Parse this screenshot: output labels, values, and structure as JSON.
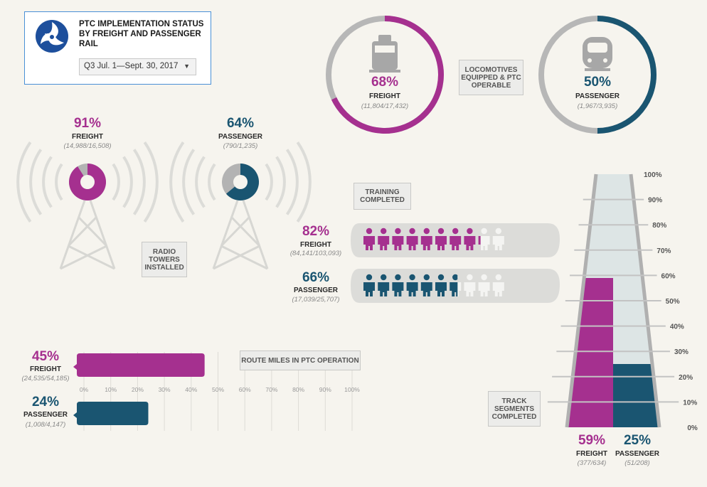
{
  "header": {
    "title": "PTC IMPLEMENTATION STATUS BY FREIGHT AND PASSENGER RAIL",
    "period_selected": "Q3 Jul. 1—Sept. 30, 2017",
    "logo_icon": "dot-logo-icon"
  },
  "colors": {
    "freight": "#a5308f",
    "passenger": "#1a5571",
    "remaining_gray": "#b3b3b3",
    "light": "#dde5e5",
    "header_border": "#4a90d6"
  },
  "locomotives": {
    "label": "LOCOMOTIVES EQUIPPED & PTC OPERABLE",
    "freight": {
      "pct": "68%",
      "label": "FREIGHT",
      "frac": "(11,804/17,432)",
      "icon": "freight-locomotive-icon"
    },
    "passenger": {
      "pct": "50%",
      "label": "PASSENGER",
      "frac": "(1,967/3,935)",
      "icon": "passenger-train-icon"
    }
  },
  "radio": {
    "label": "RADIO TOWERS INSTALLED",
    "freight": {
      "pct": "91%",
      "label": "FREIGHT",
      "frac": "(14,988/16,508)",
      "icon": "radio-tower-icon"
    },
    "passenger": {
      "pct": "64%",
      "label": "PASSENGER",
      "frac": "(790/1,235)",
      "icon": "radio-tower-icon"
    }
  },
  "training": {
    "label": "TRAINING COMPLETED",
    "freight": {
      "pct": "82%",
      "label": "FREIGHT",
      "frac": "(84,141/103,093)",
      "icon": "person-icon"
    },
    "passenger": {
      "pct": "66%",
      "label": "PASSENGER",
      "frac": "(17,039/25,707)",
      "icon": "person-icon"
    }
  },
  "route": {
    "label": "ROUTE MILES IN PTC OPERATION",
    "freight": {
      "pct": "45%",
      "label": "FREIGHT",
      "frac": "(24,535/54,185)"
    },
    "passenger": {
      "pct": "24%",
      "label": "PASSENGER",
      "frac": "(1,008/4,147)"
    }
  },
  "track": {
    "label": "TRACK SEGMENTS COMPLETED",
    "freight": {
      "pct": "59%",
      "label": "FREIGHT",
      "frac": "(377/634)"
    },
    "passenger": {
      "pct": "25%",
      "label": "PASSENGER",
      "frac": "(51/208)"
    }
  },
  "chart_data": [
    {
      "type": "pie",
      "title": "LOCOMOTIVES EQUIPPED & PTC OPERABLE",
      "series": [
        {
          "name": "FREIGHT",
          "value": 68,
          "completed": 11804,
          "total": 17432
        },
        {
          "name": "PASSENGER",
          "value": 50,
          "completed": 1967,
          "total": 3935
        }
      ]
    },
    {
      "type": "pie",
      "title": "RADIO TOWERS INSTALLED",
      "series": [
        {
          "name": "FREIGHT",
          "value": 91,
          "completed": 14988,
          "total": 16508
        },
        {
          "name": "PASSENGER",
          "value": 64,
          "completed": 790,
          "total": 1235
        }
      ]
    },
    {
      "type": "bar",
      "title": "TRAINING COMPLETED",
      "series": [
        {
          "name": "FREIGHT",
          "value": 82,
          "completed": 84141,
          "total": 103093
        },
        {
          "name": "PASSENGER",
          "value": 66,
          "completed": 17039,
          "total": 25707
        }
      ],
      "ylim": [
        0,
        100
      ]
    },
    {
      "type": "bar",
      "title": "ROUTE MILES IN PTC OPERATION",
      "orientation": "horizontal",
      "categories": [
        "FREIGHT",
        "PASSENGER"
      ],
      "values": [
        45,
        24
      ],
      "fractions": [
        "(24,535/54,185)",
        "(1,008/4,147)"
      ],
      "xlim": [
        0,
        100
      ],
      "ticks": [
        "0%",
        "10%",
        "20%",
        "30%",
        "40%",
        "50%",
        "60%",
        "70%",
        "80%",
        "90%",
        "100%"
      ],
      "grid": true
    },
    {
      "type": "bar",
      "title": "TRACK SEGMENTS COMPLETED",
      "categories": [
        "FREIGHT",
        "PASSENGER"
      ],
      "values": [
        59,
        25
      ],
      "fractions": [
        "(377/634)",
        "(51/208)"
      ],
      "ylim": [
        0,
        100
      ],
      "ticks": [
        "0%",
        "10%",
        "20%",
        "30%",
        "40%",
        "50%",
        "60%",
        "70%",
        "80%",
        "90%",
        "100%"
      ]
    }
  ]
}
